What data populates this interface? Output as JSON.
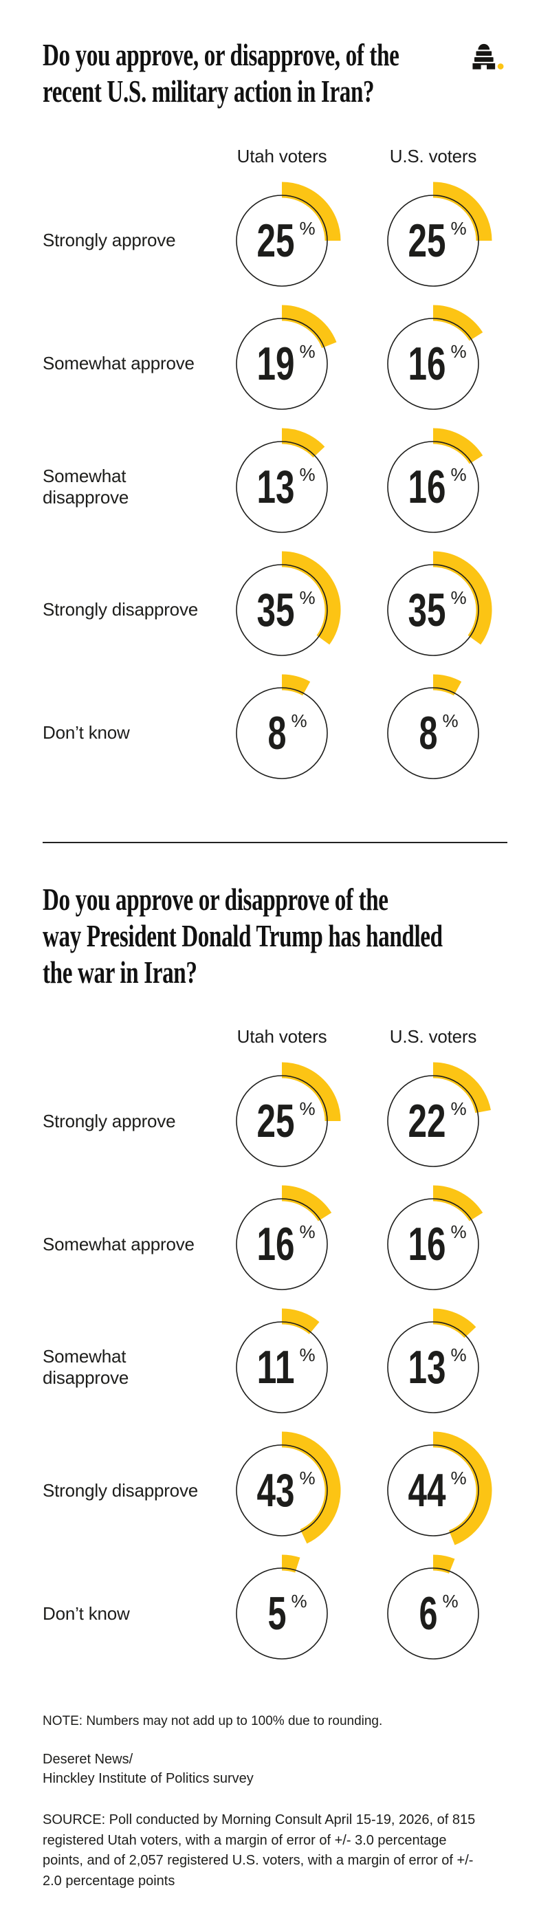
{
  "colors": {
    "arc_gold": "#FCC414",
    "ink": "#1d1d1b",
    "circle_outline": "#1d1d1b"
  },
  "logo": {
    "name": "Deseret News beehive logo",
    "beehive_color": "#161513",
    "dot_color": "#FCC414"
  },
  "chart_data": [
    {
      "type": "pie",
      "variant": "partial-radial-arc-gauge",
      "title": "Do you approve, or disapprove, of the recent U.S. military action in Iran?",
      "title_lines": [
        "Do you approve, or disapprove, of the",
        "recent U.S. military action in Iran?"
      ],
      "unit": "%",
      "value_range": [
        0,
        100
      ],
      "legend_position": "column-headers-top",
      "columns": [
        "Utah voters",
        "U.S. voters"
      ],
      "categories": [
        "Strongly approve",
        "Somewhat approve",
        "Somewhat disapprove",
        "Strongly disapprove",
        "Don’t know"
      ],
      "series": [
        {
          "name": "Utah voters",
          "values": [
            25,
            19,
            13,
            35,
            8
          ]
        },
        {
          "name": "U.S. voters",
          "values": [
            25,
            16,
            16,
            35,
            8
          ]
        }
      ]
    },
    {
      "type": "pie",
      "variant": "partial-radial-arc-gauge",
      "title": "Do you approve or disapprove of the way President Donald Trump has handled the war in Iran?",
      "title_lines": [
        "Do you approve or disapprove of the",
        "way President Donald Trump has handled",
        "the war in Iran?"
      ],
      "unit": "%",
      "value_range": [
        0,
        100
      ],
      "legend_position": "column-headers-top",
      "columns": [
        "Utah voters",
        "U.S. voters"
      ],
      "categories": [
        "Strongly approve",
        "Somewhat approve",
        "Somewhat disapprove",
        "Strongly disapprove",
        "Don’t know"
      ],
      "series": [
        {
          "name": "Utah voters",
          "values": [
            25,
            16,
            11,
            43,
            5
          ]
        },
        {
          "name": "U.S. voters",
          "values": [
            22,
            16,
            13,
            44,
            6
          ]
        }
      ]
    }
  ],
  "footer": {
    "note": "NOTE: Numbers may not add up to 100% due to rounding.",
    "credit_lines": [
      "Deseret News/",
      "Hinckley Institute of Politics survey"
    ],
    "source": "SOURCE: Poll conducted by Morning Consult April 15-19, 2026, of 815 registered Utah voters, with a margin of error of +/- 3.0 percentage points, and of 2,057 registered U.S. voters, with a margin of error of +/- 2.0 percentage points"
  }
}
